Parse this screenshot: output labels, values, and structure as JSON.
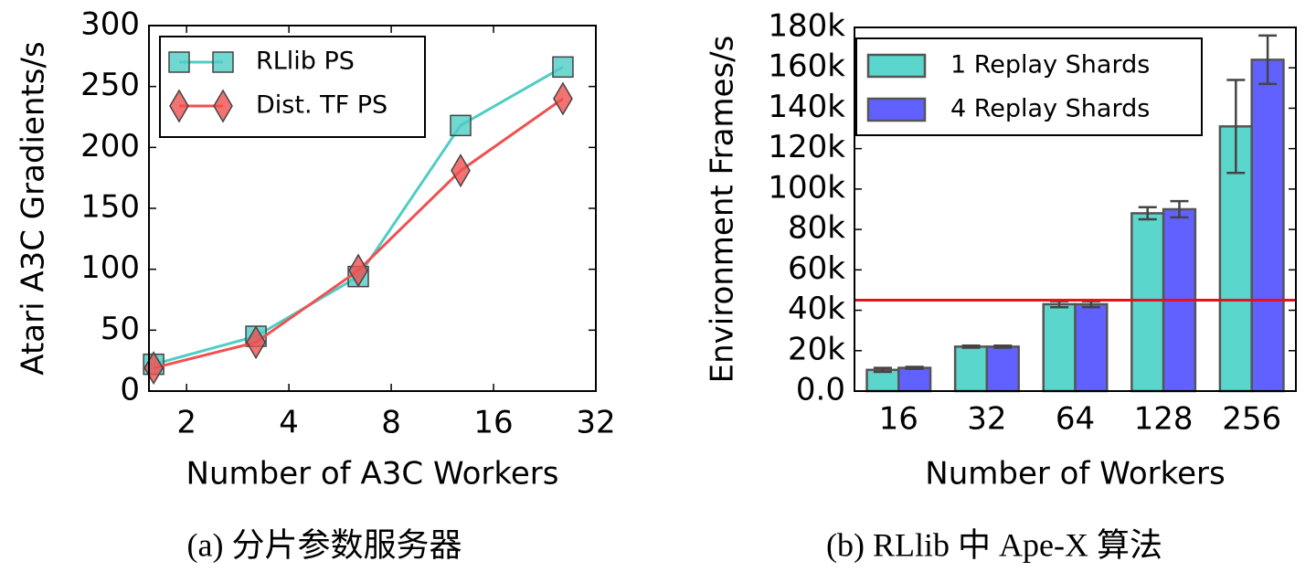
{
  "chart_data": [
    {
      "type": "line",
      "caption": "(a) 分片参数服务器",
      "x_label": "Number of A3C Workers",
      "y_label": "Atari A3C Gradients/s",
      "x_log": true,
      "xlim": [
        1.55,
        32
      ],
      "xticks": [
        2,
        4,
        8,
        16,
        32
      ],
      "ylim": [
        0,
        300
      ],
      "yticks": [
        0,
        50,
        100,
        150,
        200,
        250,
        300
      ],
      "legend": "upper-left",
      "series": [
        {
          "name": "RLlib PS",
          "color": "#4ecdc4",
          "marker": "square",
          "x": [
            1.6,
            3.2,
            6.4,
            12.8,
            25.6
          ],
          "values": [
            22,
            45,
            94,
            218,
            266
          ]
        },
        {
          "name": "Dist. TF PS",
          "color": "#f05050",
          "marker": "diamond",
          "x": [
            1.6,
            3.2,
            6.4,
            12.8,
            25.6
          ],
          "values": [
            19,
            40,
            99,
            181,
            240
          ]
        }
      ]
    },
    {
      "type": "bar",
      "caption": "(b) RLlib 中 Ape-X 算法",
      "x_label": "Number of Workers",
      "y_label": "Environment Frames/s",
      "categories": [
        "16",
        "32",
        "64",
        "128",
        "256"
      ],
      "ylim": [
        0,
        180000
      ],
      "yticks": [
        {
          "value": 0,
          "label": "0.0"
        },
        {
          "value": 20000,
          "label": "20k"
        },
        {
          "value": 40000,
          "label": "40k"
        },
        {
          "value": 60000,
          "label": "60k"
        },
        {
          "value": 80000,
          "label": "80k"
        },
        {
          "value": 100000,
          "label": "100k"
        },
        {
          "value": 120000,
          "label": "120k"
        },
        {
          "value": 140000,
          "label": "140k"
        },
        {
          "value": 160000,
          "label": "160k"
        },
        {
          "value": 180000,
          "label": "180k"
        }
      ],
      "legend": "upper-left",
      "hline": 45000,
      "hline_color": "#e8101a",
      "series": [
        {
          "name": "1 Replay Shards",
          "color": "#5bd6cc",
          "values": [
            10500,
            22000,
            43000,
            88000,
            131000
          ],
          "errors": [
            1000,
            500,
            1500,
            3000,
            23000
          ]
        },
        {
          "name": "4 Replay Shards",
          "color": "#6161ff",
          "values": [
            11500,
            22000,
            43000,
            90000,
            164000
          ],
          "errors": [
            500,
            500,
            1500,
            4000,
            12000
          ]
        }
      ]
    }
  ]
}
